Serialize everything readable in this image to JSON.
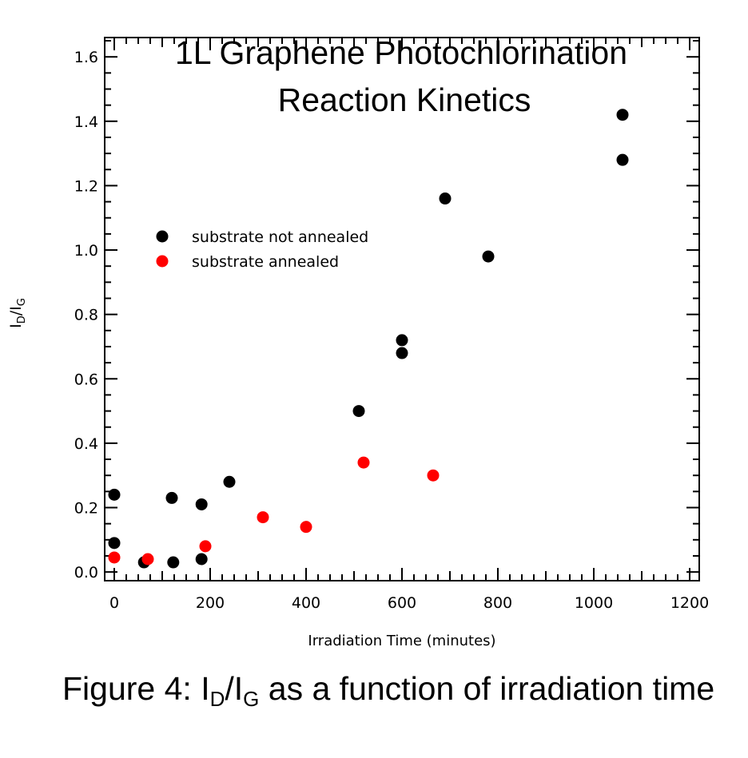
{
  "chart_data": {
    "type": "scatter",
    "title": [
      "1L Graphene Photochlorination",
      "Reaction Kinetics"
    ],
    "xlabel": "Irradiation Time (minutes)",
    "ylabel": {
      "main": "I",
      "sub1": "D",
      "slash": "/I",
      "sub2": "G"
    },
    "xlim": [
      -20,
      1220
    ],
    "ylim": [
      -0.027,
      1.66
    ],
    "xticks": [
      0,
      200,
      400,
      600,
      800,
      1000,
      1200
    ],
    "xtick_labels": [
      "0",
      "200",
      "400",
      "600",
      "800",
      "1000",
      "1200"
    ],
    "yticks": [
      0.0,
      0.2,
      0.4,
      0.6,
      0.8,
      1.0,
      1.2,
      1.4,
      1.6
    ],
    "ytick_labels": [
      "0.0",
      "0.2",
      "0.4",
      "0.6",
      "0.8",
      "1.0",
      "1.2",
      "1.4",
      "1.6"
    ],
    "grid": false,
    "legend_position": "upper-left",
    "series": [
      {
        "name": "substrate not annealed",
        "color": "#000000",
        "points": [
          [
            0,
            0.24
          ],
          [
            0,
            0.09
          ],
          [
            62,
            0.03
          ],
          [
            120,
            0.23
          ],
          [
            123,
            0.03
          ],
          [
            182,
            0.21
          ],
          [
            182,
            0.04
          ],
          [
            240,
            0.28
          ],
          [
            510,
            0.5
          ],
          [
            600,
            0.72
          ],
          [
            600,
            0.68
          ],
          [
            690,
            1.16
          ],
          [
            780,
            0.98
          ],
          [
            1060,
            1.42
          ],
          [
            1060,
            1.28
          ]
        ]
      },
      {
        "name": "substrate annealed",
        "color": "#ff0000",
        "points": [
          [
            0,
            0.045
          ],
          [
            70,
            0.04
          ],
          [
            190,
            0.08
          ],
          [
            310,
            0.17
          ],
          [
            400,
            0.14
          ],
          [
            520,
            0.34
          ],
          [
            665,
            0.3
          ]
        ]
      }
    ]
  },
  "caption": {
    "prefix": "Figure 4:  I",
    "sub1": "D",
    "mid": "/I",
    "sub2": "G",
    "suffix": " as a function of irradiation time"
  }
}
